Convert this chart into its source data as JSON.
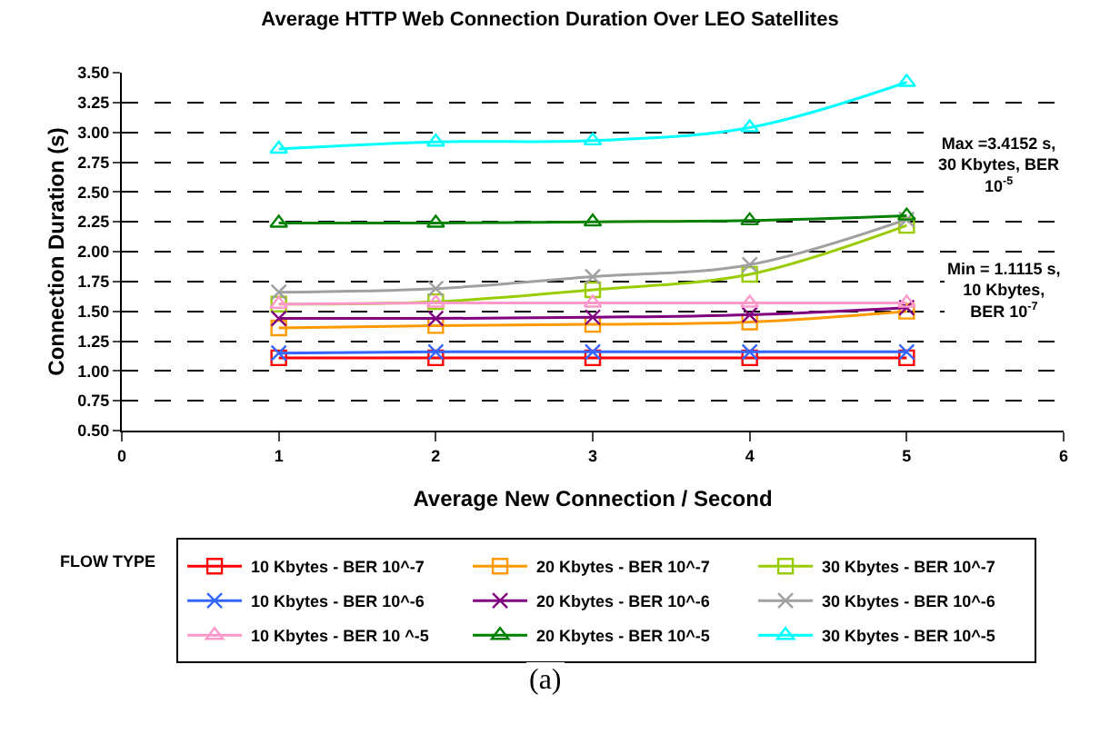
{
  "chart_data": {
    "type": "line",
    "title": "Average HTTP Web Connection Duration Over LEO Satellites",
    "xlabel": "Average New Connection / Second",
    "ylabel": "Connection Duration (s)",
    "legend_title": "FLOW TYPE",
    "x": [
      1,
      2,
      3,
      4,
      5
    ],
    "series": [
      {
        "name": "10 Kbytes - BER 10^-7",
        "color": "#ff0000",
        "marker": "square",
        "values": [
          1.11,
          1.11,
          1.11,
          1.11,
          1.11
        ]
      },
      {
        "name": "20 Kbytes - BER 10^-7",
        "color": "#ff9900",
        "marker": "square",
        "values": [
          1.36,
          1.38,
          1.39,
          1.41,
          1.5
        ]
      },
      {
        "name": "30 Kbytes - BER 10^-7",
        "color": "#99cc00",
        "marker": "square",
        "values": [
          1.56,
          1.58,
          1.68,
          1.81,
          2.22
        ]
      },
      {
        "name": "10 Kbytes - BER 10^-6",
        "color": "#3366ff",
        "marker": "cross",
        "values": [
          1.15,
          1.16,
          1.16,
          1.16,
          1.16
        ]
      },
      {
        "name": "20 Kbytes - BER 10^-6",
        "color": "#800080",
        "marker": "cross",
        "values": [
          1.44,
          1.44,
          1.45,
          1.47,
          1.53
        ]
      },
      {
        "name": "30 Kbytes - BER 10^-6",
        "color": "#a0a0a0",
        "marker": "cross",
        "values": [
          1.66,
          1.69,
          1.79,
          1.89,
          2.27
        ]
      },
      {
        "name": "10 Kbytes - BER 10 ^-5",
        "color": "#ff99cc",
        "marker": "triangle",
        "values": [
          1.56,
          1.57,
          1.57,
          1.57,
          1.57
        ]
      },
      {
        "name": "20 Kbytes - BER 10^-5",
        "color": "#008000",
        "marker": "triangle",
        "values": [
          2.24,
          2.24,
          2.25,
          2.26,
          2.3
        ]
      },
      {
        "name": "30 Kbytes - BER 10^-5",
        "color": "#00ffff",
        "marker": "triangle",
        "values": [
          2.86,
          2.92,
          2.93,
          3.04,
          3.42
        ]
      }
    ],
    "xlim": [
      0,
      6
    ],
    "xticks": [
      0,
      1,
      2,
      3,
      4,
      5,
      6
    ],
    "ylim": [
      0.5,
      3.5
    ],
    "yticks": [
      {
        "value": 0.5,
        "label": "0.50"
      },
      {
        "value": 0.75,
        "label": "0.75"
      },
      {
        "value": 1.0,
        "label": "1.00"
      },
      {
        "value": 1.25,
        "label": "1.25"
      },
      {
        "value": 1.5,
        "label": "1.50"
      },
      {
        "value": 1.75,
        "label": "1.75"
      },
      {
        "value": 2.0,
        "label": "2.00"
      },
      {
        "value": 2.25,
        "label": "2.25"
      },
      {
        "value": 2.5,
        "label": "2.50"
      },
      {
        "value": 2.75,
        "label": "2.75"
      },
      {
        "value": 3.0,
        "label": "3.00"
      },
      {
        "value": 3.25,
        "label": "3.25"
      },
      {
        "value": 3.5,
        "label": "3.50"
      }
    ],
    "grid": "y",
    "legend": "bottom",
    "line_style": "solid",
    "annotations": [
      "Max =3.4152 s,\n30 Kbytes, BER\n10$^{-5}$",
      "Min = 1.1115 s,\n10 Kbytes,\nBER 10$^{-7}$",
      "(a)"
    ]
  }
}
